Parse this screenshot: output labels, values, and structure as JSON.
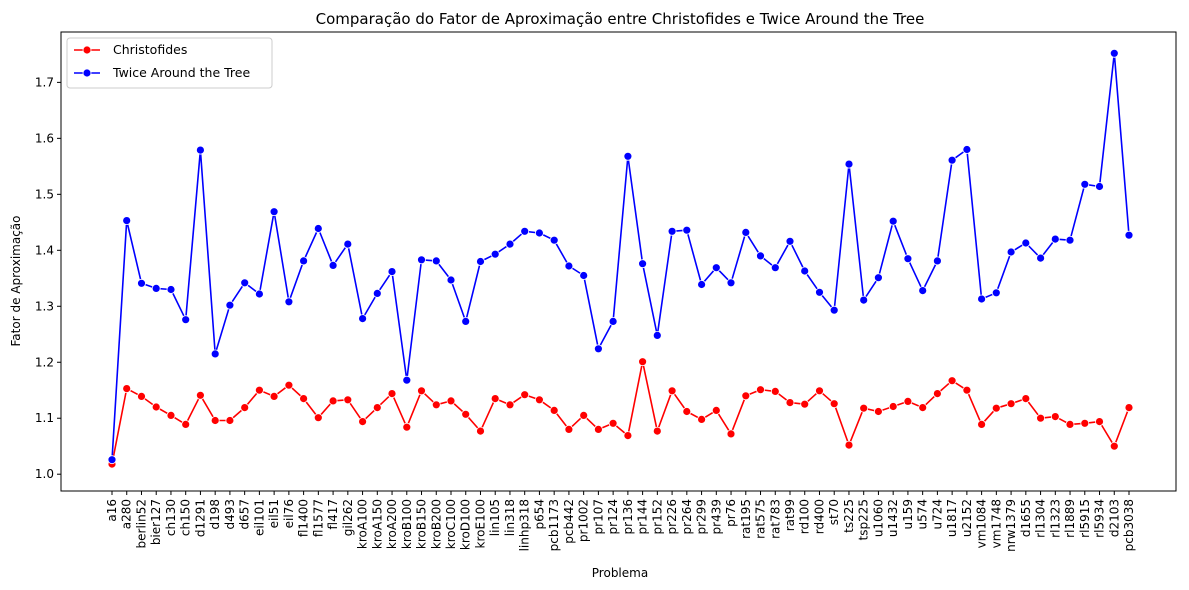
{
  "chart_data": {
    "type": "line",
    "title": "Comparação do Fator de Aproximação entre Christofides e Twice Around the Tree",
    "xlabel": "Problema",
    "ylabel": "Fator de Aproximação",
    "ylim": [
      0.97,
      1.79
    ],
    "yticks": [
      1.0,
      1.1,
      1.2,
      1.3,
      1.4,
      1.5,
      1.6,
      1.7
    ],
    "ytick_labels": [
      "1.0",
      "1.1",
      "1.2",
      "1.3",
      "1.4",
      "1.5",
      "1.6",
      "1.7"
    ],
    "grid": false,
    "legend_position": "top-left",
    "categories": [
      "a16",
      "a280",
      "berlin52",
      "bier127",
      "ch130",
      "ch150",
      "d1291",
      "d198",
      "d493",
      "d657",
      "eil101",
      "eil51",
      "eil76",
      "fl1400",
      "fl1577",
      "fl417",
      "gil262",
      "kroA100",
      "kroA150",
      "kroA200",
      "kroB100",
      "kroB150",
      "kroB200",
      "kroC100",
      "kroD100",
      "kroE100",
      "lin105",
      "lin318",
      "linhp318",
      "p654",
      "pcb1173",
      "pcb442",
      "pr1002",
      "pr107",
      "pr124",
      "pr136",
      "pr144",
      "pr152",
      "pr226",
      "pr264",
      "pr299",
      "pr439",
      "pr76",
      "rat195",
      "rat575",
      "rat783",
      "rat99",
      "rd100",
      "rd400",
      "st70",
      "ts225",
      "tsp225",
      "u1060",
      "u1432",
      "u159",
      "u574",
      "u724",
      "u1817",
      "u2152",
      "vm1084",
      "vm1748",
      "nrw1379",
      "d1655",
      "rl1304",
      "rl1323",
      "rl1889",
      "rl5915",
      "rl5934",
      "d2103",
      "pcb3038"
    ],
    "series": [
      {
        "name": "Christofides",
        "color": "#ff0000",
        "values": [
          1.018,
          1.153,
          1.139,
          1.12,
          1.105,
          1.089,
          1.141,
          1.096,
          1.096,
          1.119,
          1.15,
          1.139,
          1.159,
          1.135,
          1.101,
          1.131,
          1.133,
          1.094,
          1.119,
          1.144,
          1.084,
          1.149,
          1.124,
          1.131,
          1.107,
          1.077,
          1.135,
          1.124,
          1.142,
          1.133,
          1.114,
          1.08,
          1.105,
          1.08,
          1.091,
          1.069,
          1.201,
          1.077,
          1.149,
          1.112,
          1.098,
          1.114,
          1.072,
          1.14,
          1.151,
          1.148,
          1.128,
          1.125,
          1.149,
          1.126,
          1.052,
          1.118,
          1.112,
          1.121,
          1.13,
          1.119,
          1.144,
          1.167,
          1.15,
          1.089,
          1.118,
          1.126,
          1.135,
          1.1,
          1.103,
          1.089,
          1.091,
          1.094,
          1.05,
          1.119
        ]
      },
      {
        "name": "Twice Around the Tree",
        "color": "#0000ff",
        "values": [
          1.026,
          1.453,
          1.341,
          1.332,
          1.33,
          1.276,
          1.579,
          1.215,
          1.302,
          1.342,
          1.322,
          1.469,
          1.308,
          1.381,
          1.439,
          1.373,
          1.411,
          1.278,
          1.323,
          1.362,
          1.168,
          1.383,
          1.381,
          1.347,
          1.273,
          1.38,
          1.393,
          1.411,
          1.434,
          1.431,
          1.418,
          1.372,
          1.355,
          1.224,
          1.273,
          1.568,
          1.376,
          1.248,
          1.434,
          1.436,
          1.339,
          1.369,
          1.342,
          1.432,
          1.39,
          1.369,
          1.416,
          1.363,
          1.325,
          1.293,
          1.554,
          1.311,
          1.351,
          1.452,
          1.385,
          1.328,
          1.381,
          1.561,
          1.58,
          1.313,
          1.324,
          1.397,
          1.413,
          1.386,
          1.42,
          1.418,
          1.518,
          1.514,
          1.752,
          1.427
        ]
      }
    ]
  }
}
